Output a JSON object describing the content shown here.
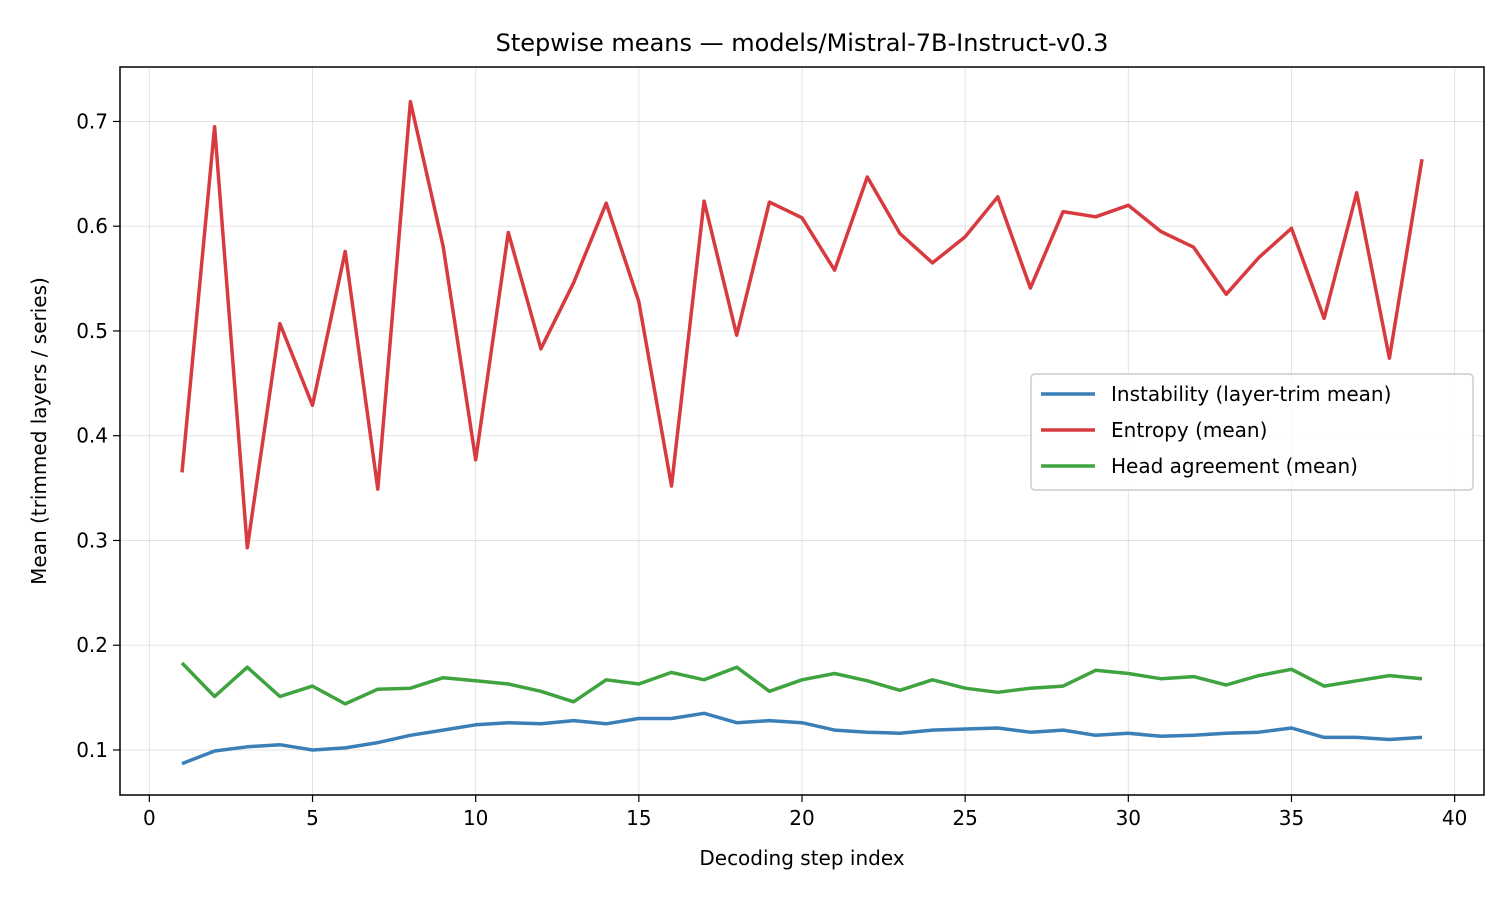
{
  "chart_data": {
    "type": "line",
    "title": "Stepwise means — models/Mistral-7B-Instruct-v0.3",
    "xlabel": "Decoding step index",
    "ylabel": "Mean (trimmed layers / series)",
    "xlim": [
      -0.9,
      40.9
    ],
    "ylim": [
      0.057,
      0.752
    ],
    "xticks": [
      0,
      5,
      10,
      15,
      20,
      25,
      30,
      35,
      40
    ],
    "yticks": [
      0.1,
      0.2,
      0.3,
      0.4,
      0.5,
      0.6,
      0.7
    ],
    "xtick_labels": [
      "0",
      "5",
      "10",
      "15",
      "20",
      "25",
      "30",
      "35",
      "40"
    ],
    "ytick_labels": [
      "0.1",
      "0.2",
      "0.3",
      "0.4",
      "0.5",
      "0.6",
      "0.7"
    ],
    "grid": true,
    "legend_position": "center-right",
    "x": [
      1,
      2,
      3,
      4,
      5,
      6,
      7,
      8,
      9,
      10,
      11,
      12,
      13,
      14,
      15,
      16,
      17,
      18,
      19,
      20,
      21,
      22,
      23,
      24,
      25,
      26,
      27,
      28,
      29,
      30,
      31,
      32,
      33,
      34,
      35,
      36,
      37,
      38,
      39
    ],
    "series": [
      {
        "name": "Instability (layer-trim mean)",
        "color": "#3a7fb8",
        "values": [
          0.087,
          0.099,
          0.103,
          0.105,
          0.1,
          0.102,
          0.107,
          0.114,
          0.119,
          0.124,
          0.126,
          0.125,
          0.128,
          0.125,
          0.13,
          0.13,
          0.135,
          0.126,
          0.128,
          0.126,
          0.119,
          0.117,
          0.116,
          0.119,
          0.12,
          0.121,
          0.117,
          0.119,
          0.114,
          0.116,
          0.113,
          0.114,
          0.116,
          0.117,
          0.121,
          0.112,
          0.112,
          0.11,
          0.112
        ]
      },
      {
        "name": "Entropy (mean)",
        "color": "#d83b3f",
        "values": [
          0.365,
          0.695,
          0.293,
          0.507,
          0.429,
          0.576,
          0.349,
          0.719,
          0.581,
          0.377,
          0.594,
          0.483,
          0.546,
          0.622,
          0.528,
          0.352,
          0.624,
          0.496,
          0.623,
          0.608,
          0.558,
          0.647,
          0.593,
          0.565,
          0.59,
          0.628,
          0.541,
          0.614,
          0.609,
          0.62,
          0.595,
          0.58,
          0.535,
          0.57,
          0.598,
          0.512,
          0.632,
          0.474,
          0.664
        ]
      },
      {
        "name": "Head agreement (mean)",
        "color": "#3fa33f",
        "values": [
          0.183,
          0.151,
          0.179,
          0.151,
          0.161,
          0.144,
          0.158,
          0.159,
          0.169,
          0.166,
          0.163,
          0.156,
          0.146,
          0.167,
          0.163,
          0.174,
          0.167,
          0.179,
          0.156,
          0.167,
          0.173,
          0.166,
          0.157,
          0.167,
          0.159,
          0.155,
          0.159,
          0.161,
          0.176,
          0.173,
          0.168,
          0.17,
          0.162,
          0.171,
          0.177,
          0.161,
          0.166,
          0.171,
          0.168
        ]
      }
    ]
  }
}
